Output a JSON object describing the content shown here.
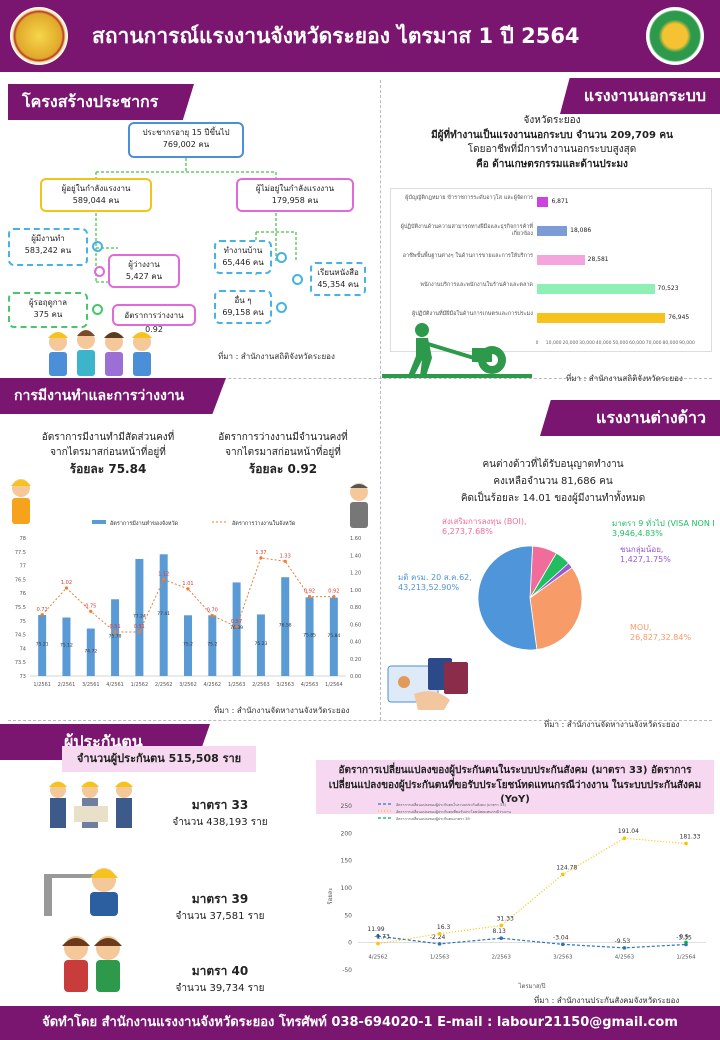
{
  "header": {
    "title": "สถานการณ์แรงงานจังหวัดระยอง ไตรมาส 1 ปี 2564"
  },
  "population": {
    "banner": "โครงสร้างประชากร",
    "root": {
      "label": "ประชากรอายุ 15 ปีขึ้นไป",
      "value": "769,002 คน"
    },
    "labour_force": {
      "label": "ผู้อยู่ในกำลังแรงงาน",
      "value": "589,044 คน"
    },
    "not_labour_force": {
      "label": "ผู้ไม่อยู่ในกำลังแรงงาน",
      "value": "179,958 คน"
    },
    "employed": {
      "label": "ผู้มีงานทำ",
      "value": "583,242 คน"
    },
    "unemployed": {
      "label": "ผู้ว่างงาน",
      "value": "5,427 คน"
    },
    "seasonal": {
      "label": "ผู้รอฤดูกาล",
      "value": "375 คน"
    },
    "unemp_rate": "อัตราการว่างงาน 0.92",
    "housework": {
      "label": "ทำงานบ้าน",
      "value": "65,446 คน"
    },
    "study": {
      "label": "เรียนหนังสือ",
      "value": "45,354 คน"
    },
    "other": {
      "label": "อื่น ๆ",
      "value": "69,158 คน"
    },
    "source": "ที่มา : สำนักงานสถิติจังหวัดระยอง"
  },
  "informal": {
    "banner": "แรงงานนอกระบบ",
    "line1": "จังหวัดระยอง",
    "line2": "มีผู้ที่ทำงานเป็นแรงงานนอกระบบ จำนวน 209,709 คน",
    "line3": "โดยอาชีพที่มีการทำงานนอกระบบสูงสุด",
    "line4": "คือ ด้านเกษตรกรรมและด้านประมง",
    "bars": [
      {
        "label": "ผู้บัญญัติกฎหมาย ข้าราชการระดับอาวุโส และผู้จัดการ",
        "value": 6871,
        "text": "6,871",
        "color": "#cc44dd"
      },
      {
        "label": "ผู้ปฏิบัติงานด้านความสามารถทางฝีมือและธุรกิจการค้าที่เกี่ยวข้อง",
        "value": 18086,
        "text": "18,086",
        "color": "#7d9bd6"
      },
      {
        "label": "อาชีพขั้นพื้นฐานต่างๆ ในด้านการขายและการให้บริการ",
        "value": 28581,
        "text": "28,581",
        "color": "#f4a6dc"
      },
      {
        "label": "พนักงานบริการและพนักงานในร้านค้าและตลาด",
        "value": 70523,
        "text": "70,523",
        "color": "#8ef0b4"
      },
      {
        "label": "ผู้ปฏิบัติงานที่มีฝีมือในด้านการเกษตรและการประมง",
        "value": 76945,
        "text": "76,945",
        "color": "#f8c21c"
      }
    ],
    "axis_ticks": [
      "0",
      "10,000",
      "20,000",
      "30,000",
      "40,000",
      "50,000",
      "60,000",
      "70,000",
      "80,000",
      "90,000"
    ],
    "source": "ที่มา : สำนักงานสถิติจังหวัดระยอง"
  },
  "employment": {
    "banner": "การมีงานทำและการว่างงาน",
    "left_text1": "อัตราการมีงานทำมีสัดส่วนคงที่",
    "left_text2": "จากไตรมาสก่อนหน้าที่อยู่ที่",
    "left_value": "ร้อยละ 75.84",
    "right_text1": "อัตราการว่างงานมีจำนวนคงที่",
    "right_text2": "จากไตรมาสก่อนหน้าที่อยู่ที่",
    "right_value": "ร้อยละ 0.92",
    "source": "ที่มา : สำนักงานจัดหางานจังหวัดระยอง"
  },
  "chart_data": [
    {
      "type": "bar",
      "categories": [
        "1/2561",
        "2/2561",
        "3/2561",
        "4/2561",
        "1/2562",
        "2/2562",
        "3/2562",
        "4/2562",
        "1/2563",
        "2/2563",
        "3/2563",
        "4/2563",
        "1/2564"
      ],
      "series": [
        {
          "name": "อัตราการมีงานทำของจังหวัด",
          "type": "bar",
          "axis": "left",
          "color": "#5b9bd5",
          "values": [
            75.21,
            75.12,
            74.72,
            75.78,
            77.24,
            77.41,
            75.2,
            75.2,
            76.39,
            75.23,
            76.58,
            75.85,
            75.84
          ],
          "labels": [
            "75.21",
            "75.12",
            "74.72",
            "75.78",
            "77.24",
            "77.41",
            "75.2",
            "75.2",
            "76.39",
            "75.23",
            "76.58",
            "75.85",
            "75.84"
          ]
        },
        {
          "name": "อัตราการว่างงานในจังหวัด",
          "type": "line",
          "axis": "right",
          "color": "#ed7d31",
          "values": [
            0.71,
            1.02,
            0.75,
            0.51,
            0.51,
            1.12,
            1.01,
            0.7,
            0.57,
            1.37,
            1.33,
            0.92,
            0.92
          ],
          "labels": [
            "0.71",
            "1.02",
            "0.75",
            "0.51",
            "0.51",
            "1.12",
            "1.01",
            "0.70",
            "0.57",
            "1.37",
            "1.33",
            "0.92",
            "0.92"
          ]
        }
      ],
      "ylim_left": [
        73,
        78
      ],
      "ylim_right": [
        0,
        1.6
      ],
      "yticks_left": [
        "73",
        "73.5",
        "74",
        "74.5",
        "75",
        "75.5",
        "76",
        "76.5",
        "77",
        "77.5",
        "78"
      ],
      "yticks_right": [
        "0.00",
        "0.20",
        "0.40",
        "0.60",
        "0.80",
        "1.00",
        "1.20",
        "1.40",
        "1.60"
      ],
      "legend_position": "top"
    },
    {
      "type": "pie",
      "slices": [
        {
          "label": "มติ ครม. 20 ส.ค.62,",
          "value_text": "43,213,52.90%",
          "value": 43213,
          "percent": 52.9,
          "color": "#4e95d9"
        },
        {
          "label": "MOU,",
          "value_text": "26,827,32.84%",
          "value": 26827,
          "percent": 32.84,
          "color": "#f79c68"
        },
        {
          "label": "ส่งเสริมการลงทุน (BOI),",
          "value_text": "6,273,7.68%",
          "value": 6273,
          "percent": 7.68,
          "color": "#f06c9b"
        },
        {
          "label": "มาตรา 9 ทั่วไป (VISA NON B),",
          "value_text": "3,946,4.83%",
          "value": 3946,
          "percent": 4.83,
          "color": "#1fbf5f"
        },
        {
          "label": "ชนกลุ่มน้อย,",
          "value_text": "1,427,1.75%",
          "value": 1427,
          "percent": 1.75,
          "color": "#9b59d6"
        }
      ]
    },
    {
      "type": "line",
      "categories": [
        "4/2562",
        "1/2563",
        "2/2563",
        "3/2563",
        "4/2563",
        "1/2564"
      ],
      "series": [
        {
          "name": "อัตราการเปลี่ยนแปลงของผู้ประกันตนในระบบประกันสังคม (มาตรา 33)",
          "color": "#2e75b6",
          "style": "dash",
          "values": [
            11.99,
            -2.24,
            8.13,
            -3.04,
            -9.53,
            -3.35
          ],
          "labels": [
            "11.99",
            "-2.24",
            "8.13",
            "-3.04",
            "-9.53",
            "-3.35"
          ]
        },
        {
          "name": "อัตราการเปลี่ยนแปลงของผู้ประกันตนที่ขอรับประโยชน์ทดแทนกรณีว่างงาน",
          "color": "#ffc000",
          "style": "dot",
          "values": [
            -1.73,
            16.3,
            31.33,
            124.78,
            191.04,
            181.33
          ],
          "labels": [
            "-1.73",
            "16.3",
            "31.33",
            "124.78",
            "191.04",
            "181.33"
          ]
        },
        {
          "name": "อัตราการเปลี่ยนแปลงของผู้ประกันตนมาตรา 39",
          "color": "#00b050",
          "style": "dash",
          "values": [
            null,
            null,
            null,
            null,
            null,
            0.5
          ],
          "labels": [
            "",
            "",
            "",
            "",
            "",
            "0.5"
          ]
        }
      ],
      "ylim": [
        -50,
        250
      ],
      "yticks": [
        "-50",
        "0",
        "50",
        "100",
        "150",
        "200",
        "250"
      ],
      "ylabel": "ร้อยละ",
      "xlabel": "ไตรมาส/ปี"
    }
  ],
  "foreign": {
    "banner": "แรงงานต่างด้าว",
    "line1": "คนต่างด้าวที่ได้รับอนุญาตทำงาน",
    "line2": "คงเหลือจำนวน 81,686 คน",
    "line3": "คิดเป็นร้อยละ 14.01 ของผู้มีงานทำทั้งหมด",
    "source": "ที่มา : สำนักงานจัดหางานจังหวัดระยอง"
  },
  "insured": {
    "banner": "ผู้ประกันตน",
    "total": "จำนวนผู้ประกันตน 515,508 ราย",
    "s33": {
      "title": "มาตรา 33",
      "value": "จำนวน 438,193 ราย"
    },
    "s39": {
      "title": "มาตรา 39",
      "value": "จำนวน 37,581 ราย"
    },
    "s40": {
      "title": "มาตรา 40",
      "value": "จำนวน 39,734 ราย"
    },
    "chart_title": "อัตราการเปลี่ยนแปลงของผู้ประกันตนในระบบประกันสังคม (มาตรา 33) อัตราการเปลี่ยนแปลงของผู้ประกันตนที่ขอรับประโยชน์ทดแทนกรณีว่างงาน ในระบบประกันสังคม (YoY)",
    "source": "ที่มา : สำนักงานประกันสังคมจังหวัดระยอง"
  },
  "footer": {
    "text": "จัดทำโดย สำนักงานแรงงานจังหวัดระยอง โทรศัพท์ 038-694020-1 E-mail : labour21150@gmail.com"
  }
}
